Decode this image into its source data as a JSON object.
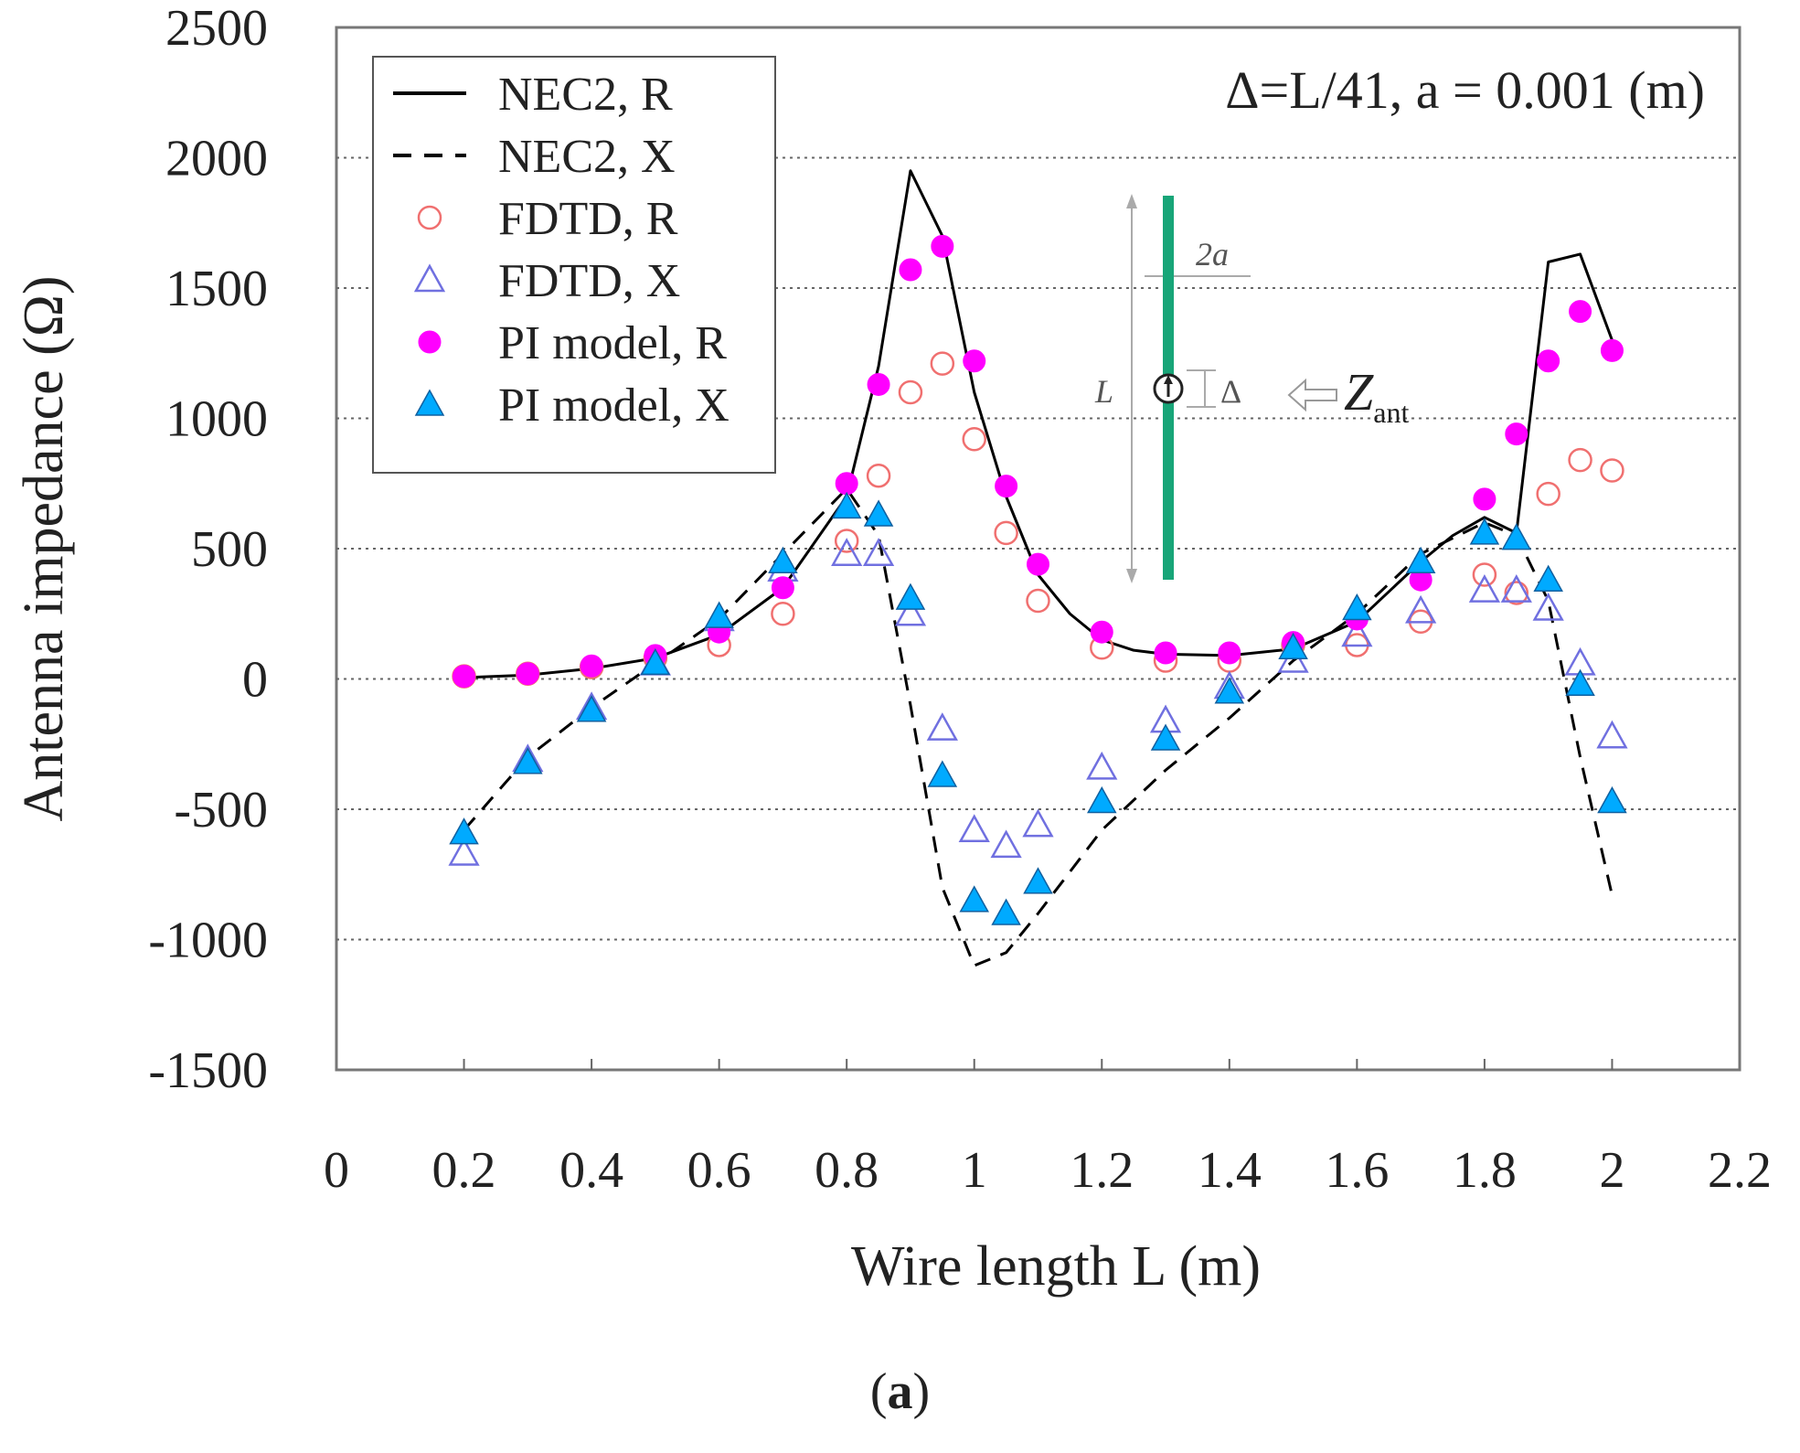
{
  "chart_data": {
    "type": "line",
    "title": "",
    "xlabel": "Wire length L (m)",
    "ylabel": "Antenna impedance (Ω)",
    "xlim": [
      0,
      2.2
    ],
    "ylim": [
      -1500,
      2500
    ],
    "xticks": [
      "0",
      "0.2",
      "0.4",
      "0.6",
      "0.8",
      "1",
      "1.2",
      "1.4",
      "1.6",
      "1.8",
      "2",
      "2.2"
    ],
    "yticks": [
      "2500",
      "2000",
      "1500",
      "1000",
      "500",
      "0",
      "-500",
      "-1000",
      "-1500"
    ],
    "annotation": "Δ=L/41, a = 0.001 (m)",
    "inset": {
      "label_L": "L",
      "label_2a": "2a",
      "label_delta": "Δ",
      "label_Z": "Z",
      "label_Z_sub": "ant",
      "wire_color": "#18a578"
    },
    "legend": [
      {
        "name": "NEC2, R",
        "style": "solid-line",
        "color": "#000000"
      },
      {
        "name": "NEC2, X",
        "style": "dashed-line",
        "color": "#000000"
      },
      {
        "name": "FDTD, R",
        "style": "open-circle",
        "color": "#f07070"
      },
      {
        "name": "FDTD, X",
        "style": "open-triangle",
        "color": "#7070e0"
      },
      {
        "name": "PI model, R",
        "style": "filled-circle",
        "color": "#ff00ff"
      },
      {
        "name": "PI model, X",
        "style": "filled-triangle",
        "color": "#00aaff"
      }
    ],
    "series": [
      {
        "name": "NEC2, R",
        "type": "line",
        "x": [
          0.2,
          0.3,
          0.4,
          0.5,
          0.6,
          0.7,
          0.8,
          0.85,
          0.9,
          0.95,
          1.0,
          1.05,
          1.1,
          1.15,
          1.2,
          1.25,
          1.3,
          1.4,
          1.5,
          1.6,
          1.7,
          1.75,
          1.8,
          1.85,
          1.9,
          1.95,
          2.0
        ],
        "y": [
          5,
          15,
          40,
          80,
          170,
          350,
          700,
          1200,
          1950,
          1700,
          1100,
          700,
          400,
          250,
          150,
          110,
          95,
          90,
          115,
          220,
          450,
          550,
          620,
          560,
          1600,
          1630,
          1300
        ]
      },
      {
        "name": "NEC2, X",
        "type": "line",
        "x": [
          0.2,
          0.3,
          0.4,
          0.5,
          0.6,
          0.7,
          0.8,
          0.85,
          0.9,
          0.95,
          1.0,
          1.05,
          1.1,
          1.2,
          1.3,
          1.4,
          1.5,
          1.6,
          1.7,
          1.8,
          1.85,
          1.9,
          1.95,
          2.0
        ],
        "y": [
          -580,
          -300,
          -110,
          60,
          230,
          480,
          730,
          550,
          -100,
          -800,
          -1100,
          -1050,
          -900,
          -580,
          -350,
          -150,
          70,
          250,
          480,
          600,
          550,
          300,
          -300,
          -830
        ]
      },
      {
        "name": "FDTD, R",
        "type": "scatter",
        "x": [
          0.2,
          0.3,
          0.4,
          0.5,
          0.6,
          0.7,
          0.8,
          0.85,
          0.9,
          0.95,
          1.0,
          1.05,
          1.1,
          1.2,
          1.3,
          1.4,
          1.5,
          1.6,
          1.7,
          1.8,
          1.85,
          1.9,
          1.95,
          2.0
        ],
        "y": [
          10,
          20,
          45,
          80,
          130,
          250,
          530,
          780,
          1100,
          1210,
          920,
          560,
          300,
          120,
          70,
          70,
          130,
          130,
          220,
          400,
          330,
          710,
          840,
          800
        ]
      },
      {
        "name": "FDTD, X",
        "type": "scatter",
        "x": [
          0.2,
          0.3,
          0.4,
          0.5,
          0.6,
          0.7,
          0.8,
          0.85,
          0.9,
          0.95,
          1.0,
          1.05,
          1.1,
          1.2,
          1.3,
          1.4,
          1.5,
          1.6,
          1.7,
          1.8,
          1.85,
          1.9,
          1.95,
          2.0
        ],
        "y": [
          -670,
          -310,
          -110,
          60,
          230,
          420,
          480,
          480,
          250,
          -190,
          -580,
          -640,
          -560,
          -340,
          -160,
          -30,
          70,
          170,
          260,
          340,
          340,
          270,
          60,
          -220
        ]
      },
      {
        "name": "PI model, R",
        "type": "scatter",
        "x": [
          0.2,
          0.3,
          0.4,
          0.5,
          0.6,
          0.7,
          0.8,
          0.85,
          0.9,
          0.95,
          1.0,
          1.05,
          1.1,
          1.2,
          1.3,
          1.4,
          1.5,
          1.6,
          1.7,
          1.8,
          1.85,
          1.9,
          1.95,
          2.0
        ],
        "y": [
          10,
          20,
          50,
          90,
          180,
          350,
          750,
          1130,
          1570,
          1660,
          1220,
          740,
          440,
          180,
          100,
          100,
          140,
          230,
          380,
          690,
          940,
          1220,
          1410,
          1260
        ]
      },
      {
        "name": "PI model, X",
        "type": "scatter",
        "x": [
          0.2,
          0.3,
          0.4,
          0.5,
          0.6,
          0.7,
          0.8,
          0.85,
          0.9,
          0.95,
          1.0,
          1.05,
          1.1,
          1.2,
          1.3,
          1.4,
          1.5,
          1.6,
          1.7,
          1.8,
          1.85,
          1.9,
          1.95,
          2.0
        ],
        "y": [
          -590,
          -320,
          -120,
          60,
          240,
          450,
          660,
          630,
          310,
          -370,
          -850,
          -900,
          -780,
          -470,
          -230,
          -50,
          120,
          270,
          450,
          560,
          540,
          380,
          -20,
          -470
        ]
      }
    ]
  },
  "caption": {
    "open": "(",
    "letter": "a",
    "close": ")"
  }
}
